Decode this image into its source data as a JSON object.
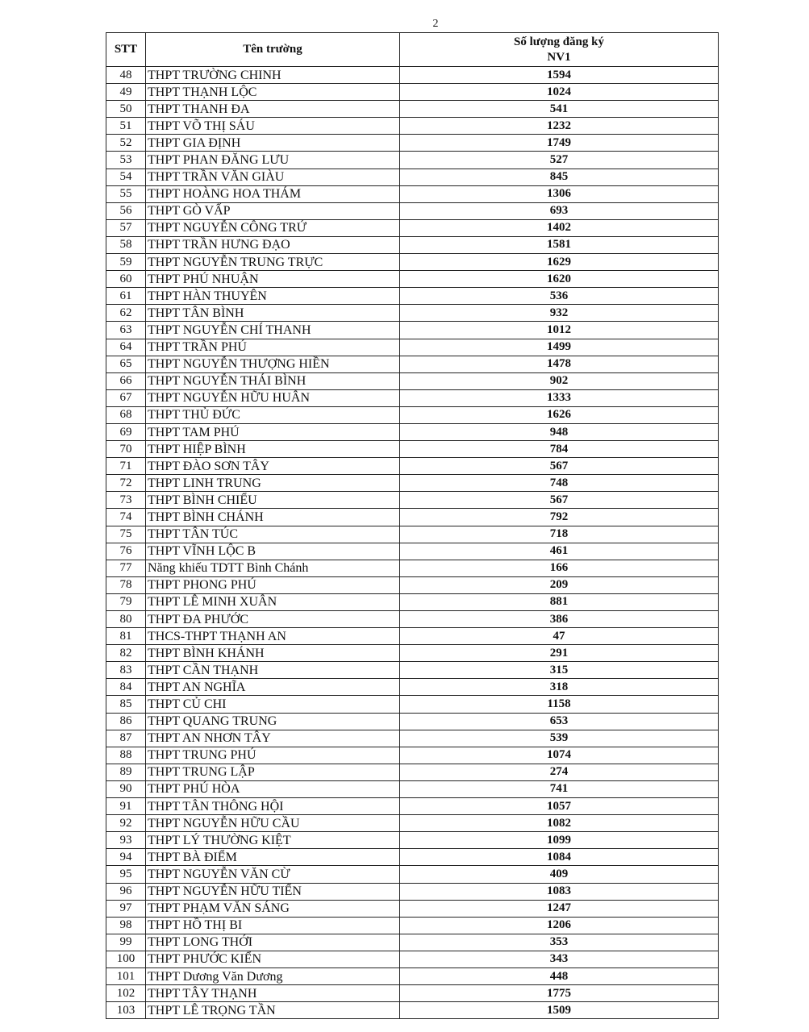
{
  "page_number": "2",
  "table": {
    "header": [
      "STT",
      "Tên trường",
      [
        "Số lượng đăng ký",
        "NV1"
      ]
    ],
    "rows": [
      [
        48,
        "THPT TRƯỜNG CHINH",
        1594
      ],
      [
        49,
        "THPT THẠNH LỘC",
        1024
      ],
      [
        50,
        "THPT THANH ĐA",
        541
      ],
      [
        51,
        "THPT VÕ THỊ SÁU",
        1232
      ],
      [
        52,
        "THPT GIA ĐỊNH",
        1749
      ],
      [
        53,
        "THPT PHAN ĐĂNG LƯU",
        527
      ],
      [
        54,
        "THPT TRẦN VĂN GIÀU",
        845
      ],
      [
        55,
        "THPT HOÀNG HOA THÁM",
        1306
      ],
      [
        56,
        "THPT GÒ VẤP",
        693
      ],
      [
        57,
        "THPT NGUYỄN CÔNG TRỨ",
        1402
      ],
      [
        58,
        "THPT TRẦN HƯNG ĐẠO",
        1581
      ],
      [
        59,
        "THPT NGUYỄN TRUNG TRỰC",
        1629
      ],
      [
        60,
        "THPT PHÚ NHUẬN",
        1620
      ],
      [
        61,
        "THPT HÀN THUYÊN",
        536
      ],
      [
        62,
        "THPT TÂN BÌNH",
        932
      ],
      [
        63,
        "THPT NGUYỄN CHÍ THANH",
        1012
      ],
      [
        64,
        "THPT TRẦN PHÚ",
        1499
      ],
      [
        65,
        "THPT NGUYỄN THƯỢNG HIỀN",
        1478
      ],
      [
        66,
        "THPT NGUYỄN THÁI BÌNH",
        902
      ],
      [
        67,
        "THPT NGUYỄN HỮU HUÂN",
        1333
      ],
      [
        68,
        "THPT THỦ ĐỨC",
        1626
      ],
      [
        69,
        "THPT TAM PHÚ",
        948
      ],
      [
        70,
        "THPT HIỆP BÌNH",
        784
      ],
      [
        71,
        "THPT ĐÀO SƠN TÂY",
        567
      ],
      [
        72,
        "THPT LINH TRUNG",
        748
      ],
      [
        73,
        "THPT BÌNH CHIỂU",
        567
      ],
      [
        74,
        "THPT BÌNH CHÁNH",
        792
      ],
      [
        75,
        "THPT TÂN TÚC",
        718
      ],
      [
        76,
        "THPT VĨNH LỘC B",
        461
      ],
      [
        77,
        "Năng khiếu TDTT Bình Chánh",
        166
      ],
      [
        78,
        "THPT PHONG PHÚ",
        209
      ],
      [
        79,
        "THPT LÊ MINH XUÂN",
        881
      ],
      [
        80,
        "THPT ĐA PHƯỚC",
        386
      ],
      [
        81,
        "THCS-THPT THẠNH AN",
        47
      ],
      [
        82,
        "THPT BÌNH KHÁNH",
        291
      ],
      [
        83,
        "THPT CẦN THẠNH",
        315
      ],
      [
        84,
        "THPT AN NGHĨA",
        318
      ],
      [
        85,
        "THPT CỦ CHI",
        1158
      ],
      [
        86,
        "THPT QUANG TRUNG",
        653
      ],
      [
        87,
        "THPT AN NHƠN TÂY",
        539
      ],
      [
        88,
        "THPT TRUNG PHÚ",
        1074
      ],
      [
        89,
        "THPT TRUNG LẬP",
        274
      ],
      [
        90,
        "THPT PHÚ HÒA",
        741
      ],
      [
        91,
        "THPT TÂN THÔNG HỘI",
        1057
      ],
      [
        92,
        "THPT NGUYỄN HỮU CẦU",
        1082
      ],
      [
        93,
        "THPT LÝ THƯỜNG KIỆT",
        1099
      ],
      [
        94,
        "THPT BÀ ĐIỂM",
        1084
      ],
      [
        95,
        "THPT NGUYỄN VĂN CỪ",
        409
      ],
      [
        96,
        "THPT NGUYỄN HỮU TIẾN",
        1083
      ],
      [
        97,
        "THPT PHẠM VĂN SÁNG",
        1247
      ],
      [
        98,
        "THPT HỒ THỊ BI",
        1206
      ],
      [
        99,
        "THPT LONG THỚI",
        353
      ],
      [
        100,
        "THPT PHƯỚC KIỂN",
        343
      ],
      [
        101,
        "THPT Dương Văn Dương",
        448
      ],
      [
        102,
        "THPT TÂY THẠNH",
        1775
      ],
      [
        103,
        "THPT LÊ TRỌNG TẦN",
        1509
      ]
    ]
  }
}
